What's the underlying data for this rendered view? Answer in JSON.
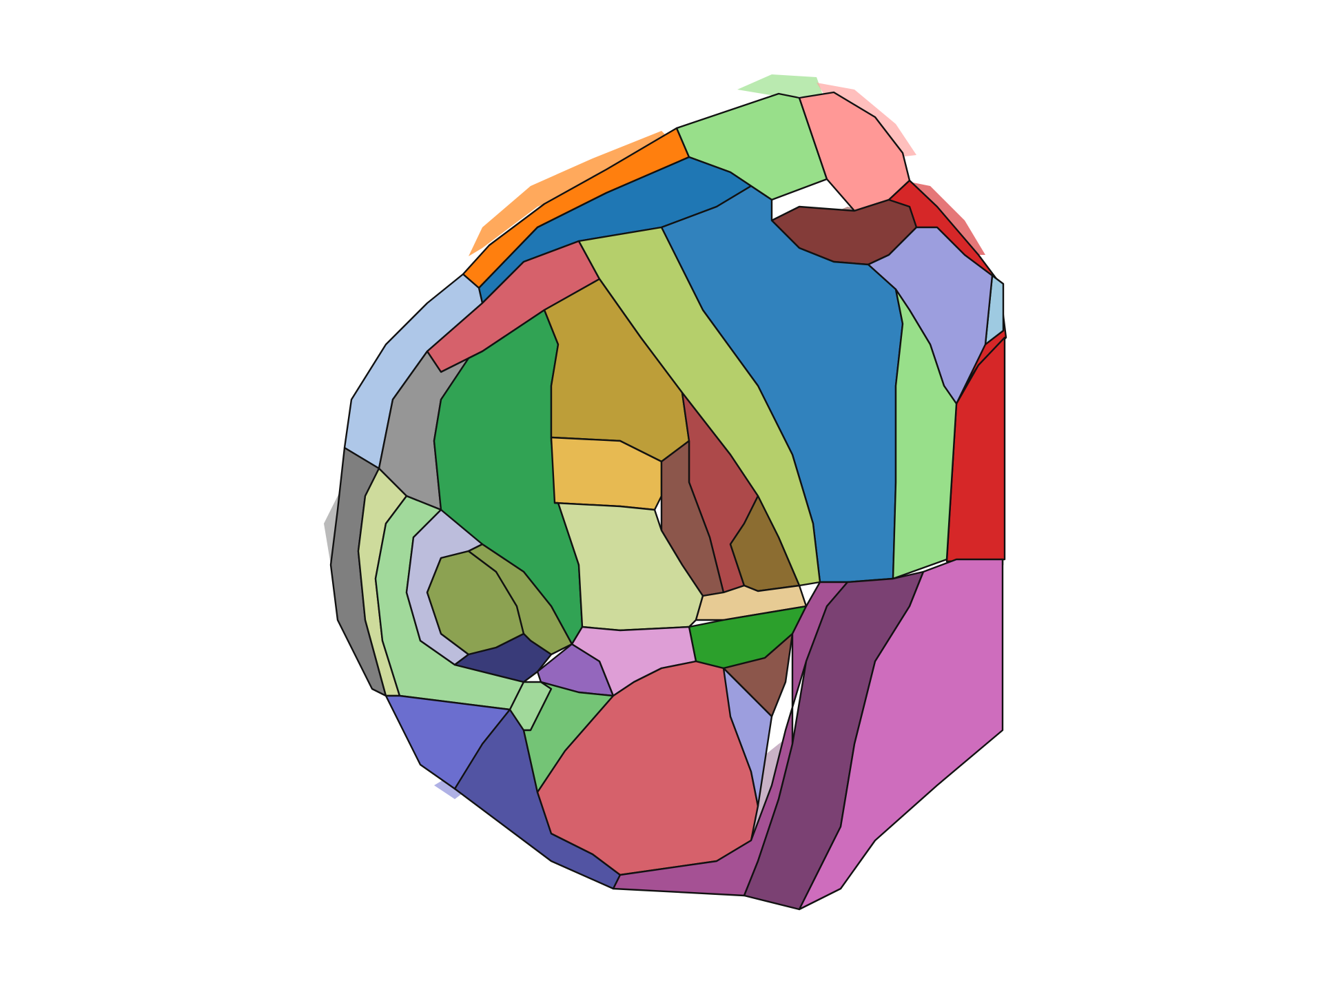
{
  "figure": {
    "background": "#ffffff",
    "outline_color": "#111111"
  },
  "regions": [
    {
      "id": "r01",
      "color": "#ff7f0e"
    },
    {
      "id": "r02",
      "color": "#98df8a"
    },
    {
      "id": "r03",
      "color": "#ff9896"
    },
    {
      "id": "r04",
      "color": "#d62728"
    },
    {
      "id": "r05",
      "color": "#843c39"
    },
    {
      "id": "r06",
      "color": "#1f77b4"
    },
    {
      "id": "r07",
      "color": "#3182bd"
    },
    {
      "id": "r08",
      "color": "#9c9ede"
    },
    {
      "id": "r09",
      "color": "#9ecae1"
    },
    {
      "id": "r10",
      "color": "#aec7e8"
    },
    {
      "id": "r11",
      "color": "#d6616b"
    },
    {
      "id": "r12",
      "color": "#b5cf6b"
    },
    {
      "id": "r13",
      "color": "#969696"
    },
    {
      "id": "r14",
      "color": "#31a354"
    },
    {
      "id": "r15",
      "color": "#bd9e39"
    },
    {
      "id": "r16",
      "color": "#e7ba52"
    },
    {
      "id": "r17",
      "color": "#ad494a"
    },
    {
      "id": "r18",
      "color": "#8c6d31"
    },
    {
      "id": "r19",
      "color": "#cedb9c"
    },
    {
      "id": "r20",
      "color": "#e7cb94"
    },
    {
      "id": "r21",
      "color": "#2ca02c"
    },
    {
      "id": "r22",
      "color": "#7f7f7f"
    },
    {
      "id": "r23",
      "color": "#a1d99b"
    },
    {
      "id": "r24",
      "color": "#bcbddc"
    },
    {
      "id": "r25",
      "color": "#8ca252"
    },
    {
      "id": "r26",
      "color": "#393b79"
    },
    {
      "id": "r27",
      "color": "#9467bd"
    },
    {
      "id": "r28",
      "color": "#de9ed6"
    },
    {
      "id": "r29",
      "color": "#6b6ecf"
    },
    {
      "id": "r30",
      "color": "#5254a3"
    },
    {
      "id": "r31",
      "color": "#74c476"
    },
    {
      "id": "r32",
      "color": "#a55194"
    },
    {
      "id": "r33",
      "color": "#7b4173"
    },
    {
      "id": "r34",
      "color": "#ce6dbd"
    },
    {
      "id": "r35",
      "color": "#8c564b"
    }
  ]
}
